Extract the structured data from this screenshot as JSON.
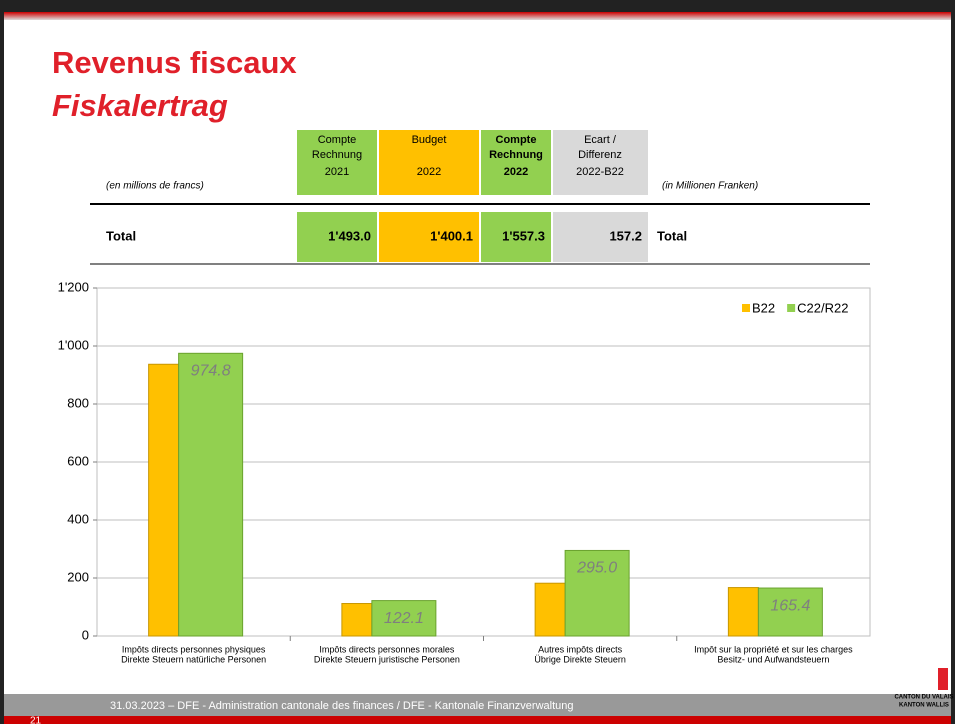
{
  "header": {
    "title": "Revenus fiscaux",
    "subtitle": "Fiskalertrag"
  },
  "table": {
    "left_note": "(en millions de francs)",
    "right_note": "(in Millionen Franken)",
    "columns": [
      [
        "Compte",
        "Rechnung",
        "2021"
      ],
      [
        "Budget",
        "2022"
      ],
      [
        "Compte",
        "Rechnung",
        "2022"
      ],
      [
        "Ecart /",
        "Differenz",
        "2022-B22"
      ]
    ],
    "row": {
      "label": "Total",
      "cells": [
        "1'493.0",
        "1'400.1",
        "1'557.3",
        "157.2"
      ],
      "label_right": "Total"
    }
  },
  "chart_data": {
    "type": "bar",
    "categories": [
      [
        "Impôts directs personnes physiques",
        "Direkte Steuern natürliche Personen"
      ],
      [
        "Impôts directs personnes morales",
        "Direkte Steuern juristische Personen"
      ],
      [
        "Autres impôts directs",
        "Übrige Direkte Steuern"
      ],
      [
        "Impôt sur la propriété et sur les charges",
        "Besitz- und Aufwandsteuern"
      ]
    ],
    "series": [
      {
        "name": "B22",
        "color": "#ffc000",
        "values": [
          937,
          112,
          182,
          167
        ]
      },
      {
        "name": "C22/R22",
        "color": "#92d050",
        "values": [
          974.8,
          122.1,
          295.0,
          165.4
        ],
        "value_labels": [
          "974.8",
          "122.1",
          "295.0",
          "165.4"
        ]
      }
    ],
    "ylim": [
      0,
      1200
    ],
    "yticks": [
      0,
      200,
      400,
      600,
      800,
      {
        "value": 1000,
        "label": "1'000"
      },
      {
        "value": 1200,
        "label": "1'200"
      }
    ],
    "grid": true,
    "legend": "top-right"
  },
  "footer": {
    "text": "31.03.2023 – DFE - Administration cantonale des finances / DFE - Kantonale Finanzverwaltung",
    "page": "21",
    "logo": [
      "CANTON DU VALAIS",
      "KANTON WALLIS"
    ]
  }
}
